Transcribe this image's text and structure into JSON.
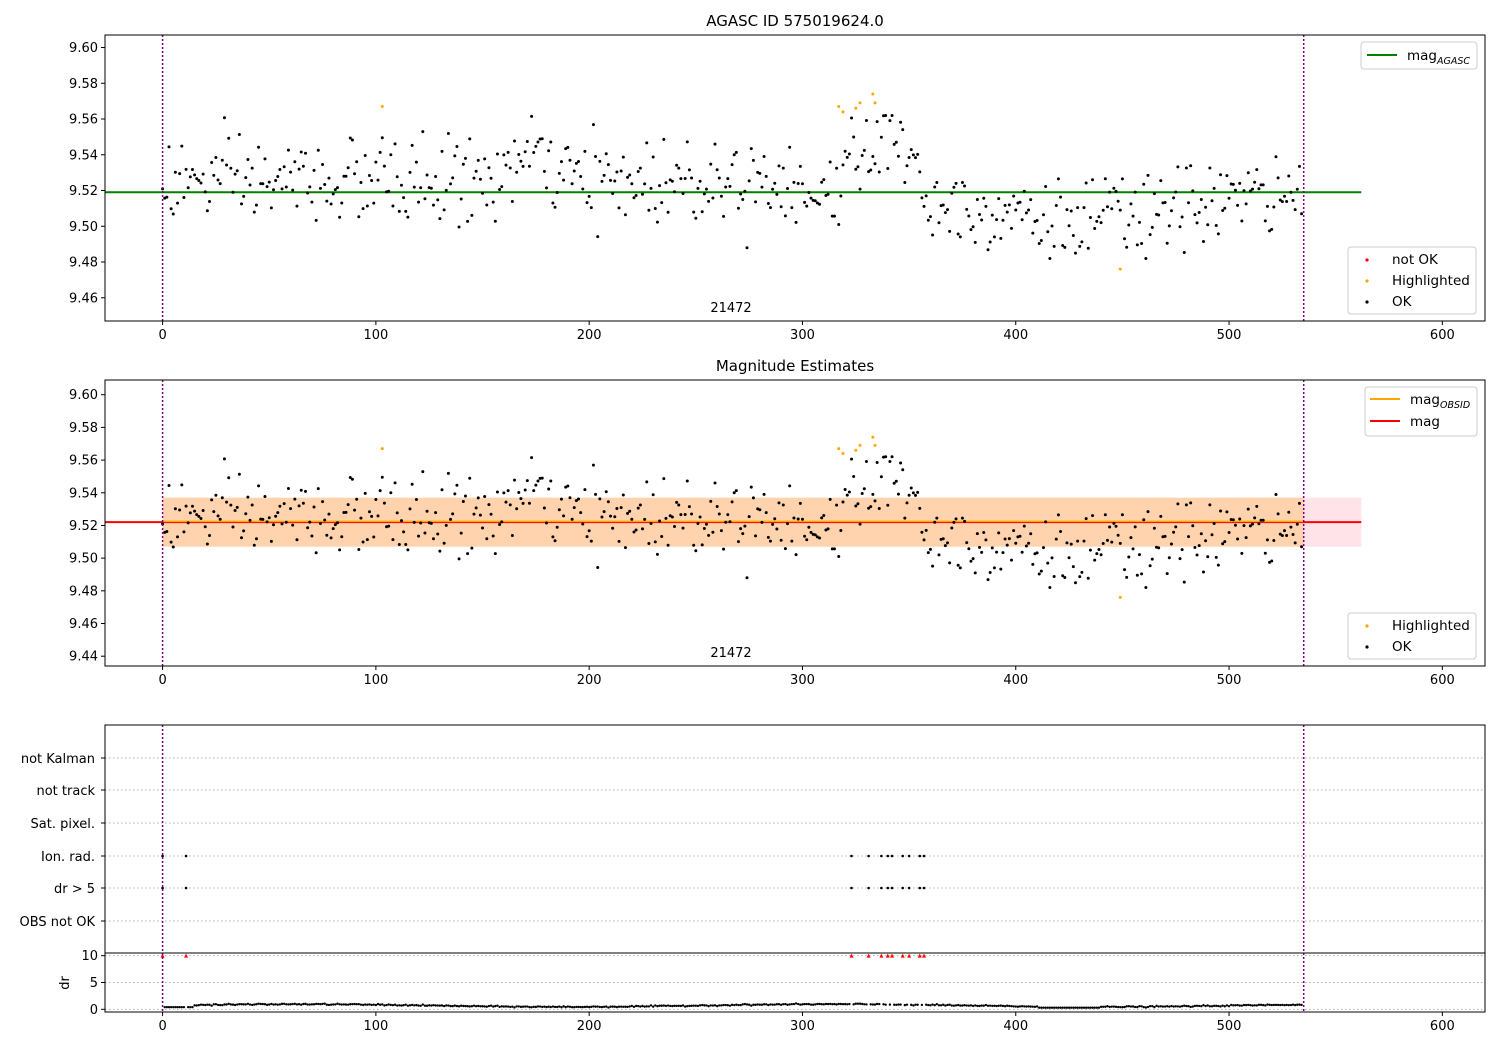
{
  "figure": {
    "background": "#ffffff"
  },
  "chart_data": [
    {
      "type": "scatter",
      "title": "AGASC ID 575019624.0",
      "xlabel": "",
      "ylabel": "",
      "xlim": [
        -27,
        620
      ],
      "ylim": [
        9.447,
        9.607
      ],
      "xticks": [
        "0",
        "100",
        "200",
        "300",
        "400",
        "500",
        "600"
      ],
      "yticks": [
        "9.46",
        "9.48",
        "9.50",
        "9.52",
        "9.54",
        "9.56",
        "9.58",
        "9.60"
      ],
      "annotation": "21472",
      "vlines": [
        0,
        535
      ],
      "vline_color": "#800080",
      "hlines": [
        {
          "name": "mag_AGASC",
          "y": 9.519,
          "x_end": 562,
          "color": "#008000"
        }
      ],
      "legend_top": {
        "entries": [
          {
            "label_main": "mag",
            "label_sub": "AGASC",
            "color": "#008000"
          }
        ],
        "placement": "top-right"
      },
      "legend_bottom": {
        "entries": [
          {
            "label": "not OK",
            "color": "#ff0000"
          },
          {
            "label": "Highlighted",
            "color": "#ffa500"
          },
          {
            "label": "OK",
            "color": "#000000"
          }
        ],
        "placement": "bottom-right"
      },
      "highlighted": [
        [
          103,
          9.567
        ],
        [
          317,
          9.567
        ],
        [
          319,
          9.564
        ],
        [
          325,
          9.566
        ],
        [
          327,
          9.569
        ],
        [
          333,
          9.574
        ],
        [
          334,
          9.569
        ],
        [
          449,
          9.476
        ]
      ],
      "grid": false
    },
    {
      "type": "scatter",
      "title": "Magnitude Estimates",
      "xlabel": "",
      "ylabel": "",
      "xlim": [
        -27,
        620
      ],
      "ylim": [
        9.434,
        9.609
      ],
      "xticks": [
        "0",
        "100",
        "200",
        "300",
        "400",
        "500",
        "600"
      ],
      "yticks": [
        "9.44",
        "9.46",
        "9.48",
        "9.50",
        "9.52",
        "9.54",
        "9.56",
        "9.58",
        "9.60"
      ],
      "annotation": "21472",
      "vlines": [
        0,
        535
      ],
      "hlines": [
        {
          "name": "mag",
          "y": 9.522,
          "x_end": 562,
          "color": "#ff0000"
        }
      ],
      "bands": [
        {
          "y0": 9.507,
          "y1": 9.537,
          "x0": 0,
          "x1": 562,
          "color": "#ffc0cb"
        },
        {
          "y0": 9.507,
          "y1": 9.537,
          "x0": 0,
          "x1": 535,
          "color": "#ffa500"
        }
      ],
      "legend_top": {
        "entries": [
          {
            "label_main": "mag",
            "label_sub": "OBSID",
            "color": "#ffa500"
          },
          {
            "label_main": "mag",
            "label_sub": "",
            "color": "#ff0000"
          }
        ],
        "placement": "top-right"
      },
      "legend_bottom": {
        "entries": [
          {
            "label": "Highlighted",
            "color": "#ffa500"
          },
          {
            "label": "OK",
            "color": "#000000"
          }
        ],
        "placement": "bottom-right"
      },
      "highlighted": [
        [
          103,
          9.567
        ],
        [
          317,
          9.567
        ],
        [
          319,
          9.564
        ],
        [
          325,
          9.566
        ],
        [
          327,
          9.569
        ],
        [
          333,
          9.574
        ],
        [
          334,
          9.569
        ],
        [
          449,
          9.476
        ]
      ],
      "grid": false
    },
    {
      "type": "scatter",
      "title": "",
      "xlim": [
        -27,
        620
      ],
      "categories": [
        "not Kalman",
        "not track",
        "Sat. pixel.",
        "Ion. rad.",
        "dr > 5",
        "OBS not OK"
      ],
      "flag_points": {
        "Ion. rad.": [
          0,
          11,
          323,
          331,
          337,
          340,
          342,
          347,
          350,
          355,
          357
        ],
        "dr > 5": [
          0,
          11,
          323,
          331,
          337,
          340,
          342,
          347,
          350,
          355,
          357
        ]
      },
      "vlines": [
        0,
        535
      ],
      "grid": "horizontal dotted"
    },
    {
      "type": "scatter",
      "title": "",
      "xlabel": "",
      "ylabel": "dr",
      "xlim": [
        -27,
        620
      ],
      "ylim": [
        -0.5,
        10.5
      ],
      "xticks": [
        "0",
        "100",
        "200",
        "300",
        "400",
        "500",
        "600"
      ],
      "yticks": [
        "0",
        "5",
        "10"
      ],
      "clipped_points": [
        0,
        11,
        323,
        331,
        337,
        340,
        342,
        347,
        350,
        355,
        357
      ],
      "clipped_value": 10,
      "clipped_color": "#ff0000",
      "dr_level_description": "about 0.3 to 1.2 across all observations",
      "vlines": [
        0,
        535
      ],
      "grid": "horizontal dotted"
    }
  ]
}
